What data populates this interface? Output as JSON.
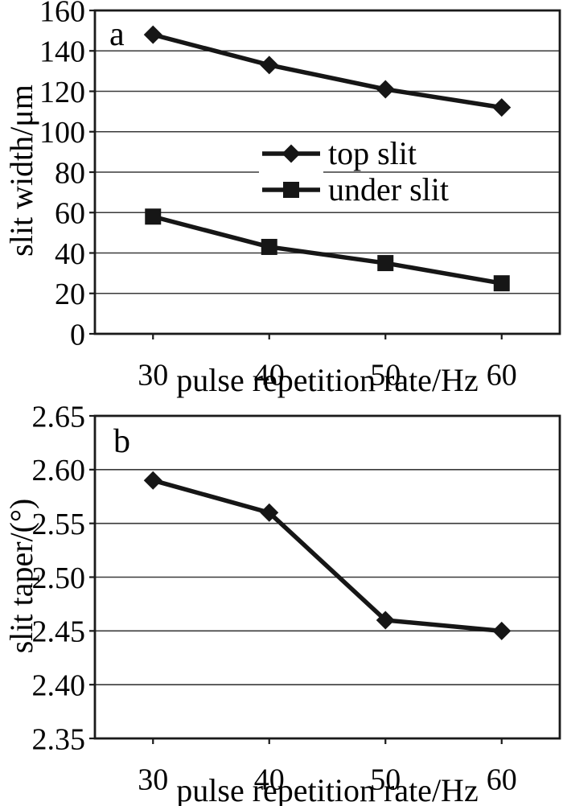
{
  "chart_data": [
    {
      "type": "line",
      "panel": "a",
      "xlabel": "pulse repetition rate/Hz",
      "ylabel": "slit width/μm",
      "x": [
        30,
        40,
        50,
        60
      ],
      "xticks": [
        "30",
        "40",
        "50",
        "60"
      ],
      "yticks": [
        "160",
        "140",
        "120",
        "100",
        "80",
        "60",
        "40",
        "20",
        "0"
      ],
      "ylim": [
        0,
        160
      ],
      "ytick_step": 20,
      "grid": true,
      "legend_position": "inside-center",
      "series": [
        {
          "name": "top slit",
          "marker": "diamond",
          "values": [
            148,
            133,
            121,
            112
          ]
        },
        {
          "name": "under slit",
          "marker": "square",
          "values": [
            58,
            43,
            35,
            25
          ]
        }
      ]
    },
    {
      "type": "line",
      "panel": "b",
      "xlabel": "pulse repetition rate/Hz",
      "ylabel": "slit taper/(°)",
      "x": [
        30,
        40,
        50,
        60
      ],
      "xticks": [
        "30",
        "40",
        "50",
        "60"
      ],
      "yticks": [
        "2.65",
        "2.60",
        "2.55",
        "2.50",
        "2.45",
        "2.40",
        "2.35"
      ],
      "ylim": [
        2.35,
        2.65
      ],
      "ytick_step": 0.05,
      "grid": true,
      "legend_position": "none",
      "series": [
        {
          "name": "slit taper",
          "marker": "diamond",
          "values": [
            2.59,
            2.56,
            2.46,
            2.45
          ]
        }
      ]
    }
  ],
  "colors": {
    "line": "#161616",
    "grid": "#3a3a3a",
    "box": "#1a1a1a",
    "text": "#050505",
    "background": "#ffffff"
  }
}
